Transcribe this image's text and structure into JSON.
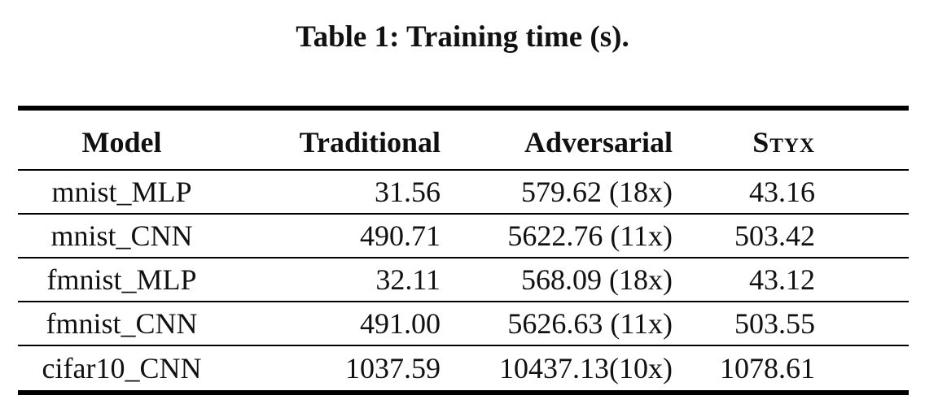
{
  "caption": "Table 1: Training time (s).",
  "table": {
    "headers": {
      "model": "Model",
      "traditional": "Traditional",
      "adversarial": "Adversarial",
      "styx": "Styx"
    },
    "rows": [
      {
        "model": "mnist_MLP",
        "traditional": "31.56",
        "adversarial": "579.62 (18x)",
        "styx": "43.16"
      },
      {
        "model": "mnist_CNN",
        "traditional": "490.71",
        "adversarial": "5622.76 (11x)",
        "styx": "503.42"
      },
      {
        "model": "fmnist_MLP",
        "traditional": "32.11",
        "adversarial": "568.09 (18x)",
        "styx": "43.12"
      },
      {
        "model": "fmnist_CNN",
        "traditional": "491.00",
        "adversarial": "5626.63 (11x)",
        "styx": "503.55"
      },
      {
        "model": "cifar10_CNN",
        "traditional": "1037.59",
        "adversarial": "10437.13(10x)",
        "styx": "1078.61"
      }
    ]
  }
}
